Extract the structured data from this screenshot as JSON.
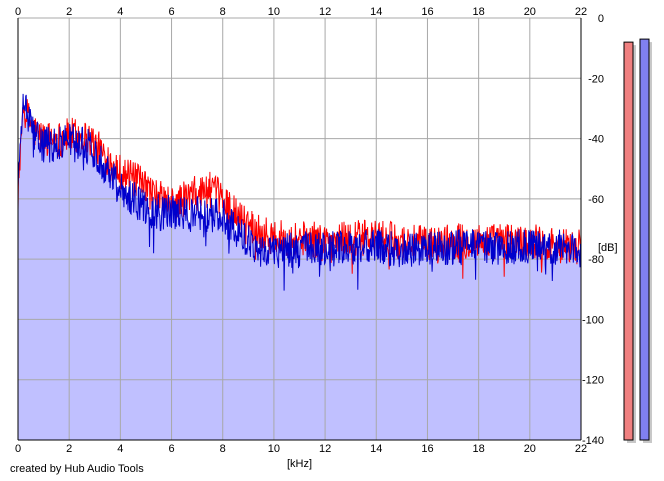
{
  "credit": "created by Hub Audio Tools",
  "chart_data": {
    "type": "line",
    "xlabel": "[kHz]",
    "ylabel": "[dB]",
    "xlim": [
      0,
      22
    ],
    "ylim": [
      -140,
      0
    ],
    "x_ticks": [
      "0",
      "2",
      "4",
      "6",
      "8",
      "10",
      "12",
      "14",
      "16",
      "18",
      "20",
      "22"
    ],
    "y_ticks": [
      "0",
      "-20",
      "-40",
      "-60",
      "-80",
      "-100",
      "-120",
      "-140"
    ],
    "grid": true,
    "fill_color": "#c0c0ff",
    "series": [
      {
        "color": "#ff0000",
        "x": [
          0,
          0.2,
          0.4,
          0.6,
          0.8,
          1.0,
          1.3,
          1.6,
          2.0,
          2.4,
          2.8,
          3.2,
          3.6,
          4.0,
          4.4,
          4.8,
          5.2,
          5.6,
          6.0,
          6.5,
          7.0,
          7.5,
          8.0,
          8.5,
          9.0,
          9.5,
          10,
          11,
          12,
          13,
          14,
          15,
          16,
          17,
          18,
          19,
          20,
          21,
          22
        ],
        "values": [
          -56,
          -30,
          -33,
          -37,
          -39,
          -40,
          -40,
          -40,
          -39,
          -39,
          -40,
          -44,
          -47,
          -51,
          -53,
          -55,
          -58,
          -60,
          -62,
          -60,
          -58,
          -57,
          -60,
          -65,
          -68,
          -71,
          -73,
          -73,
          -74,
          -73,
          -73,
          -74,
          -75,
          -74,
          -74,
          -74,
          -74,
          -75,
          -76
        ]
      },
      {
        "color": "#0000cc",
        "x": [
          0,
          0.2,
          0.4,
          0.6,
          0.8,
          1.0,
          1.3,
          1.6,
          2.0,
          2.4,
          2.8,
          3.2,
          3.6,
          4.0,
          4.4,
          4.8,
          5.2,
          5.6,
          6.0,
          6.5,
          7.0,
          7.5,
          8.0,
          8.5,
          9.0,
          9.5,
          10,
          11,
          12,
          13,
          14,
          15,
          16,
          17,
          18,
          19,
          20,
          21,
          22
        ],
        "values": [
          -55,
          -28,
          -33,
          -38,
          -41,
          -42,
          -42,
          -42,
          -40,
          -41,
          -43,
          -47,
          -51,
          -56,
          -59,
          -62,
          -64,
          -64,
          -65,
          -65,
          -65,
          -65,
          -66,
          -70,
          -74,
          -77,
          -77,
          -77,
          -77,
          -76,
          -76,
          -77,
          -77,
          -76,
          -76,
          -76,
          -76,
          -76,
          -77
        ]
      }
    ]
  },
  "level_meters": [
    {
      "color": "#f08080",
      "value": -8
    },
    {
      "color": "#8080f0",
      "value": -7
    }
  ]
}
